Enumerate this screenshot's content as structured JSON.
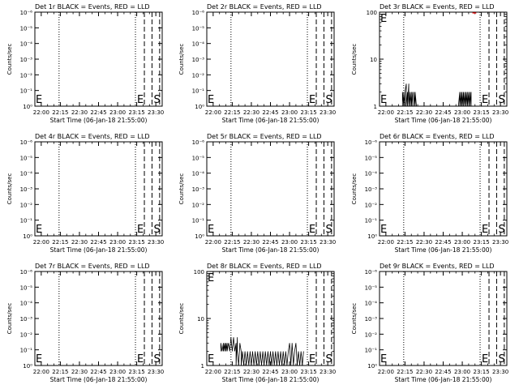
{
  "figure": {
    "x_axis_label": "Start Time (06-Jan-18 21:55:00)",
    "y_axis_label": "Counts/sec",
    "x_tick_labels": [
      "22:00",
      "22:15",
      "22:30",
      "22:45",
      "23:00",
      "23:15",
      "23:30"
    ],
    "log_tick_labels_small": [
      "10⁰",
      "10⁻¹",
      "10⁻²",
      "10⁻³",
      "10⁻⁴",
      "10⁻⁵",
      "10⁻⁶"
    ],
    "log_tick_labels_large": [
      "1",
      "10",
      "100"
    ],
    "marker_e": "E",
    "marker_s": "S",
    "colors": {
      "events": "#000000",
      "lld": "#ff0000",
      "background": "#ffffff"
    }
  },
  "chart_data": [
    {
      "type": "line",
      "title": "Det 1r BLACK = Events, RED = LLD",
      "yscale": "log",
      "ylim_kind": "small",
      "xlim": [
        "21:55",
        "23:35"
      ],
      "dotted_at": [
        "22:14",
        "23:14"
      ],
      "dashed_at": [
        "23:21",
        "23:27",
        "23:33"
      ],
      "events": [],
      "lld": []
    },
    {
      "type": "line",
      "title": "Det 2r BLACK = Events, RED = LLD",
      "yscale": "log",
      "ylim_kind": "small",
      "xlim": [
        "21:55",
        "23:35"
      ],
      "dotted_at": [
        "22:14",
        "23:14"
      ],
      "dashed_at": [
        "23:21",
        "23:27",
        "23:33"
      ],
      "events": [],
      "lld": []
    },
    {
      "type": "line",
      "title": "Det 3r BLACK = Events, RED = LLD",
      "yscale": "log",
      "ylim_kind": "large",
      "xlim": [
        "21:55",
        "23:35"
      ],
      "dotted_at": [
        "22:14",
        "23:14"
      ],
      "dashed_at": [
        "23:21",
        "23:27",
        "23:33"
      ],
      "events": [
        [
          "22:13",
          1
        ],
        [
          "22:13",
          2
        ],
        [
          "22:14",
          1
        ],
        [
          "22:14",
          2
        ],
        [
          "22:15",
          1
        ],
        [
          "22:15",
          2
        ],
        [
          "22:16",
          3
        ],
        [
          "22:16",
          1
        ],
        [
          "22:17",
          2
        ],
        [
          "22:17",
          1
        ],
        [
          "22:18",
          3
        ],
        [
          "22:18",
          1
        ],
        [
          "22:19",
          2
        ],
        [
          "22:19",
          1
        ],
        [
          "22:20",
          2
        ],
        [
          "22:20",
          1
        ],
        [
          "22:21",
          2
        ],
        [
          "22:21",
          1
        ],
        [
          "22:22",
          1
        ],
        [
          "22:22",
          2
        ],
        [
          "22:23",
          1
        ],
        [
          "22:23",
          2
        ],
        [
          "22:24",
          1
        ],
        [
          "22:57",
          1
        ],
        [
          "22:58",
          2
        ],
        [
          "22:58",
          1
        ],
        [
          "22:59",
          2
        ],
        [
          "22:59",
          1
        ],
        [
          "23:00",
          2
        ],
        [
          "23:00",
          1
        ],
        [
          "23:01",
          2
        ],
        [
          "23:01",
          1
        ],
        [
          "23:02",
          2
        ],
        [
          "23:02",
          1
        ],
        [
          "23:03",
          2
        ],
        [
          "23:03",
          1
        ],
        [
          "23:04",
          2
        ],
        [
          "23:04",
          1
        ],
        [
          "23:05",
          2
        ],
        [
          "23:05",
          1
        ],
        [
          "23:06",
          2
        ],
        [
          "23:06",
          1
        ],
        [
          "23:07",
          2
        ],
        [
          "23:07",
          1
        ]
      ],
      "lld": [
        [
          "23:08",
          100
        ],
        [
          "23:09",
          100
        ],
        [
          "23:10",
          100
        ],
        [
          "23:11",
          100
        ]
      ]
    },
    {
      "type": "line",
      "title": "Det 4r BLACK = Events, RED = LLD",
      "yscale": "log",
      "ylim_kind": "small",
      "xlim": [
        "21:55",
        "23:35"
      ],
      "dotted_at": [
        "22:14",
        "23:14"
      ],
      "dashed_at": [
        "23:21",
        "23:27",
        "23:33"
      ],
      "events": [],
      "lld": []
    },
    {
      "type": "line",
      "title": "Det 5r BLACK = Events, RED = LLD",
      "yscale": "log",
      "ylim_kind": "small",
      "xlim": [
        "21:55",
        "23:35"
      ],
      "dotted_at": [
        "22:14",
        "23:14"
      ],
      "dashed_at": [
        "23:21",
        "23:27",
        "23:33"
      ],
      "events": [],
      "lld": []
    },
    {
      "type": "line",
      "title": "Det 6r BLACK = Events, RED = LLD",
      "yscale": "log",
      "ylim_kind": "small",
      "xlim": [
        "21:55",
        "23:35"
      ],
      "dotted_at": [
        "22:14",
        "23:14"
      ],
      "dashed_at": [
        "23:21",
        "23:27",
        "23:33"
      ],
      "events": [],
      "lld": []
    },
    {
      "type": "line",
      "title": "Det 7r BLACK = Events, RED = LLD",
      "yscale": "log",
      "ylim_kind": "small",
      "xlim": [
        "21:55",
        "23:35"
      ],
      "dotted_at": [
        "22:14",
        "23:14"
      ],
      "dashed_at": [
        "23:21",
        "23:27",
        "23:33"
      ],
      "events": [],
      "lld": []
    },
    {
      "type": "line",
      "title": "Det 8r BLACK = Events, RED = LLD",
      "yscale": "log",
      "ylim_kind": "large",
      "xlim": [
        "21:55",
        "23:35"
      ],
      "dotted_at": [
        "22:14",
        "23:14"
      ],
      "dashed_at": [
        "23:21",
        "23:27",
        "23:33"
      ],
      "events": [
        [
          "22:06",
          2
        ],
        [
          "22:06",
          3
        ],
        [
          "22:07",
          2
        ],
        [
          "22:08",
          3
        ],
        [
          "22:08",
          2
        ],
        [
          "22:09",
          3
        ],
        [
          "22:09",
          2
        ],
        [
          "22:10",
          3
        ],
        [
          "22:10",
          2
        ],
        [
          "22:11",
          3
        ],
        [
          "22:11",
          2
        ],
        [
          "22:12",
          3
        ],
        [
          "22:13",
          2
        ],
        [
          "22:14",
          4
        ],
        [
          "22:15",
          2
        ],
        [
          "22:16",
          4
        ],
        [
          "22:17",
          2
        ],
        [
          "22:18",
          3
        ],
        [
          "22:18",
          1
        ],
        [
          "22:19",
          4
        ],
        [
          "22:19",
          2
        ],
        [
          "22:20",
          1
        ],
        [
          "22:21",
          3
        ],
        [
          "22:22",
          2
        ],
        [
          "22:22",
          1
        ],
        [
          "22:23",
          2
        ],
        [
          "22:24",
          1
        ],
        [
          "22:25",
          2
        ],
        [
          "22:26",
          1
        ],
        [
          "22:27",
          2
        ],
        [
          "22:28",
          1
        ],
        [
          "22:29",
          2
        ],
        [
          "22:30",
          1
        ],
        [
          "22:31",
          2
        ],
        [
          "22:32",
          1
        ],
        [
          "22:33",
          2
        ],
        [
          "22:34",
          1
        ],
        [
          "22:35",
          2
        ],
        [
          "22:36",
          1
        ],
        [
          "22:37",
          2
        ],
        [
          "22:38",
          1
        ],
        [
          "22:39",
          2
        ],
        [
          "22:40",
          1
        ],
        [
          "22:41",
          2
        ],
        [
          "22:42",
          1
        ],
        [
          "22:43",
          2
        ],
        [
          "22:44",
          1
        ],
        [
          "22:45",
          2
        ],
        [
          "22:46",
          1
        ],
        [
          "22:47",
          2
        ],
        [
          "22:48",
          1
        ],
        [
          "22:49",
          2
        ],
        [
          "22:50",
          1
        ],
        [
          "22:51",
          2
        ],
        [
          "22:52",
          1
        ],
        [
          "22:53",
          2
        ],
        [
          "22:54",
          1
        ],
        [
          "22:55",
          2
        ],
        [
          "22:56",
          1
        ],
        [
          "22:57",
          2
        ],
        [
          "22:58",
          1
        ],
        [
          "22:59",
          2
        ],
        [
          "23:00",
          3
        ],
        [
          "23:01",
          1
        ],
        [
          "23:02",
          3
        ],
        [
          "23:03",
          1
        ],
        [
          "23:04",
          2
        ],
        [
          "23:05",
          3
        ],
        [
          "23:06",
          1
        ],
        [
          "23:07",
          2
        ],
        [
          "23:08",
          1
        ],
        [
          "23:09",
          2
        ],
        [
          "23:10",
          1
        ],
        [
          "23:11",
          2
        ]
      ],
      "lld": []
    },
    {
      "type": "line",
      "title": "Det 9r BLACK = Events, RED = LLD",
      "yscale": "log",
      "ylim_kind": "small",
      "xlim": [
        "21:55",
        "23:35"
      ],
      "dotted_at": [
        "22:14",
        "23:14"
      ],
      "dashed_at": [
        "23:21",
        "23:27",
        "23:33"
      ],
      "events": [],
      "lld": []
    }
  ]
}
